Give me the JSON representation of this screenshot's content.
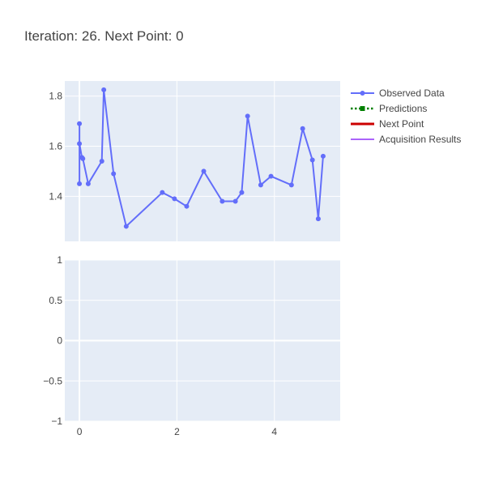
{
  "chart_data": {
    "type": "line",
    "title": "Iteration: 26. Next Point: 0",
    "legend_position": "right",
    "legend": [
      {
        "name": "Observed Data",
        "color": "#636efa",
        "style": "solid-with-markers"
      },
      {
        "name": "Predictions",
        "color": "#008000",
        "style": "dotted-with-square-markers"
      },
      {
        "name": "Next Point",
        "color": "#cc0000",
        "style": "solid-thick"
      },
      {
        "name": "Acquisition Results",
        "color": "#ab63fa",
        "style": "solid"
      }
    ],
    "x_axis": {
      "range": [
        -0.3,
        5.35
      ],
      "ticks": [
        0,
        2,
        4
      ],
      "tick_labels": [
        "0",
        "2",
        "4"
      ],
      "grid": true
    },
    "top_plot": {
      "y_range": [
        1.22,
        1.86
      ],
      "y_ticks": [
        1.4,
        1.6,
        1.8
      ],
      "y_tick_labels": [
        "1.4",
        "1.6",
        "1.8"
      ],
      "grid": true,
      "series": [
        {
          "name": "Observed Data",
          "color": "#636efa",
          "x": [
            0,
            0,
            0,
            0.05,
            0.07,
            0.18,
            0.46,
            0.5,
            0.7,
            0.96,
            1.7,
            1.95,
            2.2,
            2.55,
            2.93,
            3.2,
            3.33,
            3.45,
            3.72,
            3.93,
            4.35,
            4.58,
            4.78,
            4.9,
            5.0
          ],
          "y": [
            1.45,
            1.69,
            1.61,
            1.555,
            1.55,
            1.45,
            1.54,
            1.825,
            1.49,
            1.28,
            1.415,
            1.39,
            1.36,
            1.5,
            1.38,
            1.38,
            1.415,
            1.72,
            1.445,
            1.48,
            1.445,
            1.67,
            1.545,
            1.31,
            1.56
          ]
        }
      ]
    },
    "bottom_plot": {
      "y_range": [
        -1,
        1
      ],
      "y_ticks": [
        -1,
        -0.5,
        0,
        0.5,
        1
      ],
      "y_tick_labels": [
        "−1",
        "−0.5",
        "0",
        "0.5",
        "1"
      ],
      "grid": true,
      "series": []
    }
  }
}
